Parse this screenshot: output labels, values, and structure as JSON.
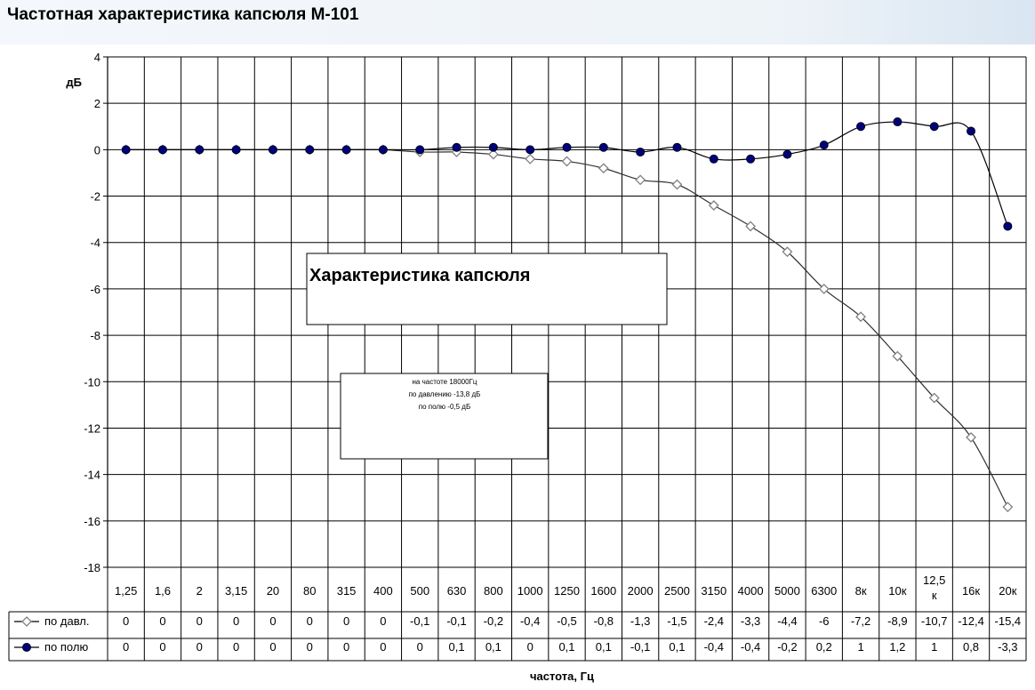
{
  "page": {
    "title": "Частотная характеристика капсюля М-101"
  },
  "chart_data": {
    "type": "line",
    "ylabel": "дБ",
    "xlabel": "частота, Гц",
    "ylim": [
      -18,
      4
    ],
    "y_ticks": [
      "4",
      "2",
      "0",
      "-2",
      "-4",
      "-6",
      "-8",
      "-10",
      "-12",
      "-14",
      "-16",
      "-18"
    ],
    "categories": [
      "1,25",
      "1,6",
      "2",
      "3,15",
      "20",
      "80",
      "315",
      "400",
      "500",
      "630",
      "800",
      "1000",
      "1250",
      "1600",
      "2000",
      "2500",
      "3150",
      "4000",
      "5000",
      "6300",
      "8к",
      "10к",
      "12,5 к",
      "16к",
      "20к"
    ],
    "grid": true,
    "legend_placement": "data-table-left",
    "series": [
      {
        "name": "по давл.",
        "marker": "diamond",
        "color": "#808080",
        "values": [
          0,
          0,
          0,
          0,
          0,
          0,
          0,
          0,
          -0.1,
          -0.1,
          -0.2,
          -0.4,
          -0.5,
          -0.8,
          -1.3,
          -1.5,
          -2.4,
          -3.3,
          -4.4,
          -6,
          -7.2,
          -8.9,
          -10.7,
          -12.4,
          -15.4
        ],
        "labels": [
          "0",
          "0",
          "0",
          "0",
          "0",
          "0",
          "0",
          "0",
          "-0,1",
          "-0,1",
          "-0,2",
          "-0,4",
          "-0,5",
          "-0,8",
          "-1,3",
          "-1,5",
          "-2,4",
          "-3,3",
          "-4,4",
          "-6",
          "-7,2",
          "-8,9",
          "-10,7",
          "-12,4",
          "-15,4"
        ]
      },
      {
        "name": "по полю",
        "marker": "circle",
        "color": "#00007a",
        "values": [
          0,
          0,
          0,
          0,
          0,
          0,
          0,
          0,
          0,
          0.1,
          0.1,
          0,
          0.1,
          0.1,
          -0.1,
          0.1,
          -0.4,
          -0.4,
          -0.2,
          0.2,
          1,
          1.2,
          1,
          0.8,
          -3.3
        ],
        "labels": [
          "0",
          "0",
          "0",
          "0",
          "0",
          "0",
          "0",
          "0",
          "0",
          "0,1",
          "0,1",
          "0",
          "0,1",
          "0,1",
          "-0,1",
          "0,1",
          "-0,4",
          "-0,4",
          "-0,2",
          "0,2",
          "1",
          "1,2",
          "1",
          "0,8",
          "-3,3"
        ]
      }
    ],
    "annotations": {
      "main": "Характеристика капсюля",
      "note_lines": [
        "на частоте 18000Гц",
        "по давлению   -13,8 дБ",
        "по полю          -0,5 дБ"
      ]
    }
  }
}
